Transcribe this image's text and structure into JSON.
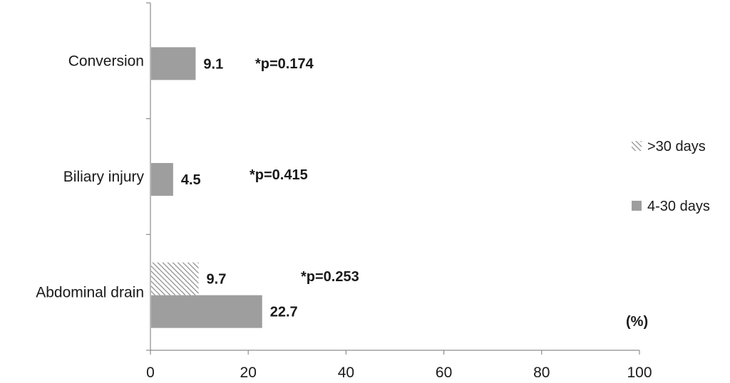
{
  "chart_data": {
    "type": "bar",
    "orientation": "horizontal",
    "categories": [
      "Conversion",
      "Biliary injury",
      "Abdominal drain"
    ],
    "series": [
      {
        "name": ">30 days",
        "values": [
          null,
          null,
          9.7
        ],
        "color": "#9e9e9e",
        "pattern": "hatched"
      },
      {
        "name": "4-30 days",
        "values": [
          9.1,
          4.5,
          22.7
        ],
        "color": "#9e9e9e",
        "pattern": "solid"
      }
    ],
    "annotations": [
      "*p=0.174",
      "*p=0.415",
      "*p=0.253"
    ],
    "unit_label": "(%)",
    "xlim": [
      0,
      100
    ],
    "xticks": [
      0,
      20,
      40,
      60,
      80,
      100
    ],
    "grid": false,
    "legend_position": "right"
  }
}
